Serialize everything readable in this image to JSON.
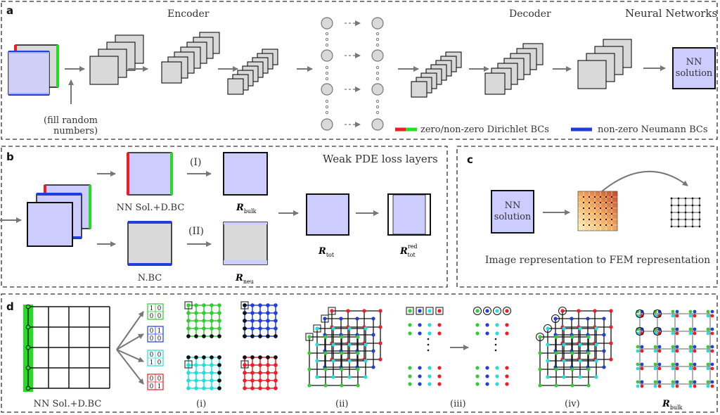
{
  "panel_a": {
    "letter": "a",
    "title": "Neural Networks",
    "encoder_label": "Encoder",
    "decoder_label": "Decoder",
    "fill_note_line1": "(fill random",
    "fill_note_line2": "numbers)",
    "nn_solution_line1": "NN",
    "nn_solution_line2": "solution",
    "legend_dirichlet": "zero/non-zero Dirichlet BCs",
    "legend_neumann": "non-zero Neumann BCs"
  },
  "panel_b": {
    "letter": "b",
    "title": "Weak PDE loss layers",
    "nn_sol_dbc": "NN Sol.+D.BC",
    "nbc": "N.BC",
    "path_1": "(I)",
    "path_2": "(II)",
    "r_bulk": "R",
    "r_bulk_sub": "bulk",
    "r_neu": "R",
    "r_neu_sub": "neu",
    "r_tot": "R",
    "r_tot_sub": "tot",
    "r_red": "R",
    "r_red_sup": "red",
    "r_red_sub": "tot"
  },
  "panel_c": {
    "letter": "c",
    "nn_solution_line1": "NN",
    "nn_solution_line2": "solution",
    "caption": "Image representation to FEM representation"
  },
  "panel_d": {
    "letter": "d",
    "nn_sol_dbc": "NN Sol.+D.BC",
    "kernel_1": [
      "1",
      "0",
      "0",
      "0"
    ],
    "kernel_2": [
      "0",
      "1",
      "0",
      "0"
    ],
    "kernel_3": [
      "0",
      "0",
      "1",
      "0"
    ],
    "kernel_4": [
      "0",
      "0",
      "0",
      "1"
    ],
    "step_i": "(i)",
    "step_ii": "(ii)",
    "step_iii": "(iii)",
    "step_iv": "(iv)",
    "r_bulk": "R",
    "r_bulk_sub": "bulk"
  },
  "colors": {
    "dirichlet_zero": "#ee1c24",
    "dirichlet_nonzero": "#22dd22",
    "neumann": "#1f3fdd",
    "nn_fill": "#ccccff",
    "feature_fill": "#d9d9d9",
    "node_green": "#33cc33",
    "node_blue": "#1f3fdd",
    "node_cyan": "#22dddd",
    "node_red": "#ee1c24",
    "node_black": "#111111"
  }
}
